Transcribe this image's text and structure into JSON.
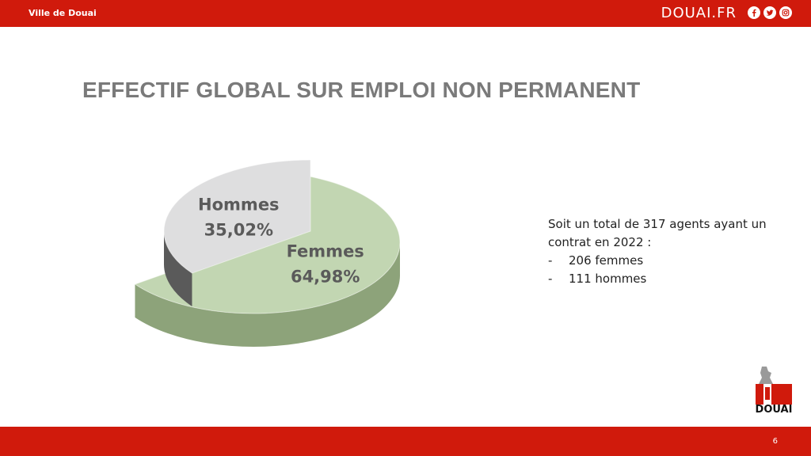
{
  "header": {
    "org_name": "Ville de Douai",
    "site_name": "DOUAI.FR",
    "social_icons": [
      "facebook-icon",
      "twitter-icon",
      "instagram-icon"
    ]
  },
  "slide": {
    "title": "EFFECTIF GLOBAL SUR EMPLOI NON PERMANENT",
    "summary": {
      "line1": "Soit un total de 317 agents ayant un contrat en 2022 :",
      "items": [
        "206 femmes",
        "111 hommes"
      ]
    },
    "page_number": "6",
    "logo_text": "DOUAI"
  },
  "colors": {
    "brand_red": "#d01a0c",
    "femmes_fill": "#c2d6b2",
    "hommes_fill": "#dededf"
  },
  "chart_data": {
    "type": "pie",
    "style": "3d-exploded",
    "slices": [
      {
        "label": "Femmes",
        "value": 64.98,
        "display": "64,98%"
      },
      {
        "label": "Hommes",
        "value": 35.02,
        "display": "35,02%"
      }
    ]
  }
}
